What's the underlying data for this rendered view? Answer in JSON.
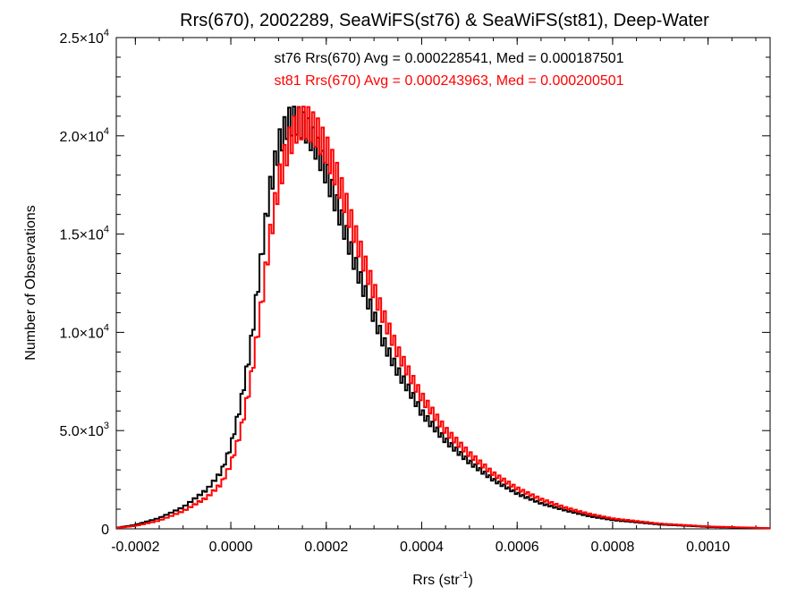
{
  "chart_data": {
    "type": "histogram",
    "title": "Rrs(670), 2002289, SeaWiFS(st76) & SeaWiFS(st81), Deep-Water",
    "xlabel": "Rrs (str",
    "xlabel_sup": "-1",
    "xlabel_close": ")",
    "ylabel": "Number of Observations",
    "xlim": [
      -0.00024,
      0.00113
    ],
    "ylim": [
      0,
      25000
    ],
    "x_ticks": [
      -0.0002,
      0.0,
      0.0002,
      0.0004,
      0.0006,
      0.0008,
      0.001
    ],
    "x_tick_labels": [
      "-0.0002",
      "0.0000",
      "0.0002",
      "0.0004",
      "0.0006",
      "0.0008",
      "0.0010"
    ],
    "y_ticks": [
      0,
      5000,
      10000,
      15000,
      20000,
      25000
    ],
    "y_tick_labels": [
      {
        "mant": "0",
        "exp": ""
      },
      {
        "mant": "5.0×10",
        "exp": "3"
      },
      {
        "mant": "1.0×10",
        "exp": "4"
      },
      {
        "mant": "1.5×10",
        "exp": "4"
      },
      {
        "mant": "2.0×10",
        "exp": "4"
      },
      {
        "mant": "2.5×10",
        "exp": "4"
      }
    ],
    "bin_width": 5e-06,
    "series": [
      {
        "name": "st76",
        "color": "#000000",
        "annotation": "st76 Rrs(670) Avg = 0.000228541, Med = 0.000187501",
        "points": [
          [
            -0.00024,
            50
          ],
          [
            -0.0002,
            200
          ],
          [
            -0.00015,
            550
          ],
          [
            -0.0001,
            1100
          ],
          [
            -5e-05,
            2000
          ],
          [
            -2e-05,
            2900
          ],
          [
            0.0,
            4200
          ],
          [
            2e-05,
            6300
          ],
          [
            4e-05,
            9000
          ],
          [
            6e-05,
            13000
          ],
          [
            8e-05,
            17000
          ],
          [
            0.0001,
            19500
          ],
          [
            0.00012,
            20700
          ],
          [
            0.00014,
            20800
          ],
          [
            0.00016,
            20300
          ],
          [
            0.00018,
            19400
          ],
          [
            0.0002,
            18100
          ],
          [
            0.00022,
            16600
          ],
          [
            0.00024,
            15100
          ],
          [
            0.00026,
            13500
          ],
          [
            0.00028,
            12100
          ],
          [
            0.0003,
            10800
          ],
          [
            0.00032,
            9500
          ],
          [
            0.00035,
            8000
          ],
          [
            0.00038,
            6800
          ],
          [
            0.0004,
            5900
          ],
          [
            0.00045,
            4500
          ],
          [
            0.0005,
            3400
          ],
          [
            0.00055,
            2500
          ],
          [
            0.0006,
            1800
          ],
          [
            0.00065,
            1300
          ],
          [
            0.0007,
            950
          ],
          [
            0.00075,
            650
          ],
          [
            0.0008,
            450
          ],
          [
            0.0009,
            220
          ],
          [
            0.001,
            100
          ],
          [
            0.00113,
            30
          ]
        ]
      },
      {
        "name": "st81",
        "color": "#ff0000",
        "annotation": "st81 Rrs(670) Avg = 0.000243963, Med = 0.000200501",
        "points": [
          [
            -0.00024,
            40
          ],
          [
            -0.0002,
            150
          ],
          [
            -0.00015,
            420
          ],
          [
            -0.0001,
            900
          ],
          [
            -5e-05,
            1600
          ],
          [
            -2e-05,
            2300
          ],
          [
            0.0,
            3300
          ],
          [
            2e-05,
            4900
          ],
          [
            4e-05,
            7300
          ],
          [
            6e-05,
            10600
          ],
          [
            8e-05,
            14500
          ],
          [
            0.0001,
            17600
          ],
          [
            0.00012,
            19500
          ],
          [
            0.00014,
            20600
          ],
          [
            0.00016,
            20700
          ],
          [
            0.00018,
            20200
          ],
          [
            0.0002,
            19300
          ],
          [
            0.00022,
            18100
          ],
          [
            0.00024,
            16600
          ],
          [
            0.00026,
            15000
          ],
          [
            0.00028,
            13500
          ],
          [
            0.0003,
            12100
          ],
          [
            0.00032,
            10800
          ],
          [
            0.00035,
            9000
          ],
          [
            0.00038,
            7600
          ],
          [
            0.0004,
            6700
          ],
          [
            0.00045,
            5000
          ],
          [
            0.0005,
            3800
          ],
          [
            0.00055,
            2800
          ],
          [
            0.0006,
            2050
          ],
          [
            0.00065,
            1500
          ],
          [
            0.0007,
            1080
          ],
          [
            0.00075,
            760
          ],
          [
            0.0008,
            520
          ],
          [
            0.0009,
            260
          ],
          [
            0.001,
            120
          ],
          [
            0.00113,
            35
          ]
        ]
      }
    ],
    "grid": false,
    "legend": "top-center text annotations"
  }
}
